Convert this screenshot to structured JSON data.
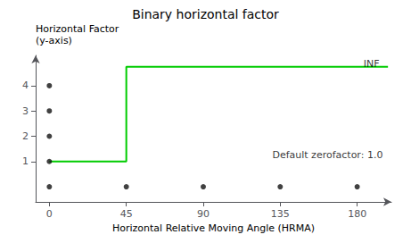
{
  "chart_data": {
    "type": "line",
    "title": "Binary horizontal factor",
    "xlabel": "Horizontal Relative Moving Angle (HRMA)",
    "ylabel": "Horizontal Factor\n(y-axis)",
    "series": [
      {
        "type": "line",
        "color": "#00cc00",
        "x": [
          0,
          45,
          45,
          198
        ],
        "values": [
          1,
          1,
          4.75,
          4.75
        ]
      },
      {
        "type": "scatter",
        "color": "#111111",
        "x": [
          0,
          0,
          0,
          0,
          0,
          45,
          90,
          135,
          180
        ],
        "values": [
          0,
          1,
          2,
          3,
          4,
          0,
          0,
          0,
          0
        ]
      }
    ],
    "annotations": [
      {
        "text": "INF",
        "x": 193,
        "y": 4.85
      },
      {
        "text": "Default zerofactor: 1.0",
        "x": 195,
        "y": 1.25
      }
    ],
    "xlim": [
      -8,
      200
    ],
    "ylim": [
      -0.6,
      5.2
    ],
    "xticks": [
      0,
      45,
      90,
      135,
      180
    ],
    "yticks": [
      1,
      2,
      3,
      4
    ],
    "grid": false
  }
}
